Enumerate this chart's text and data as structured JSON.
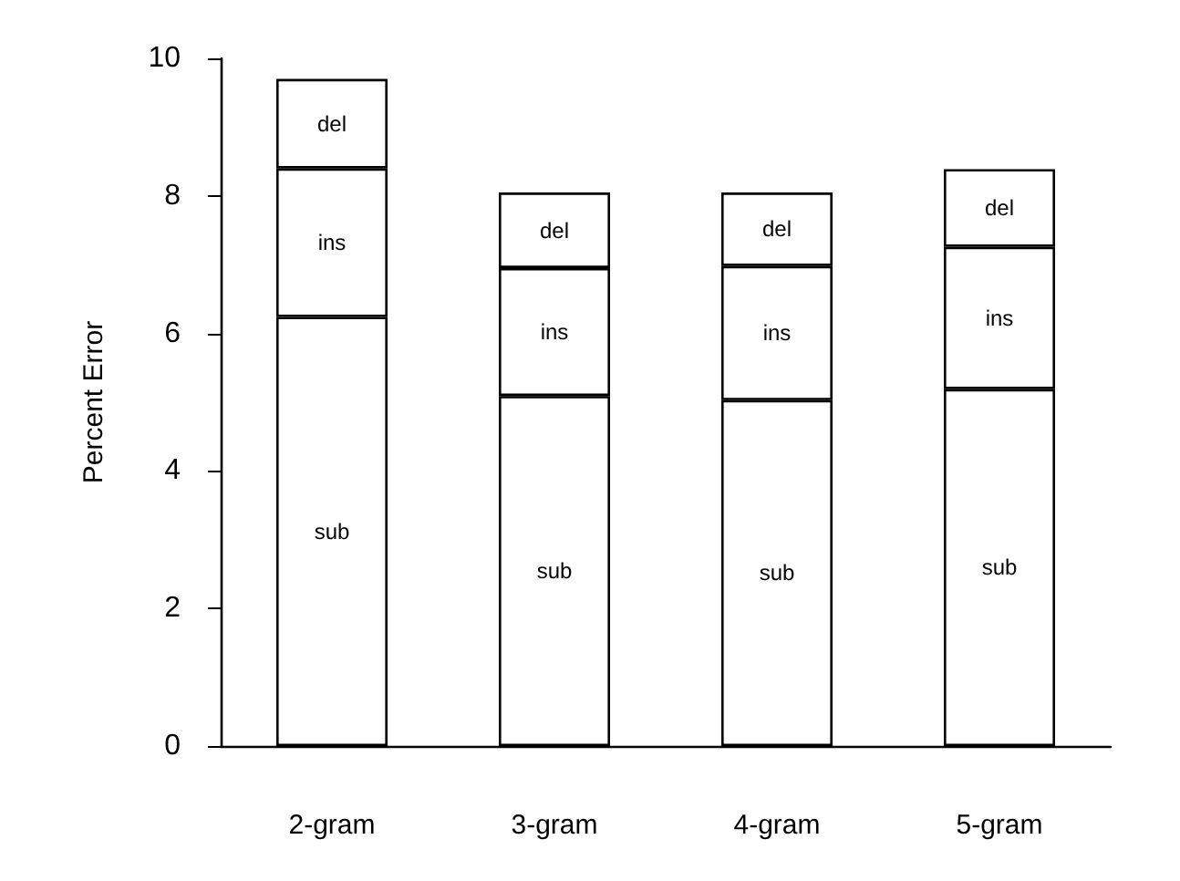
{
  "chart_data": {
    "type": "bar",
    "stacked": true,
    "ylabel": "Percent Error",
    "categories": [
      "2-gram",
      "3-gram",
      "4-gram",
      "5-gram"
    ],
    "series": [
      {
        "name": "sub",
        "color": "#ffffff",
        "values": [
          6.24,
          5.09,
          5.03,
          5.19
        ]
      },
      {
        "name": "ins",
        "color": "#ffffff",
        "values": [
          2.16,
          1.86,
          1.95,
          2.07
        ]
      },
      {
        "name": "del",
        "color": "#ffffff",
        "values": [
          1.3,
          1.1,
          1.07,
          1.13
        ]
      }
    ],
    "ylim": [
      0,
      10
    ],
    "yticks": [
      0,
      2,
      4,
      6,
      8,
      10
    ],
    "grid": false,
    "legend": false
  }
}
